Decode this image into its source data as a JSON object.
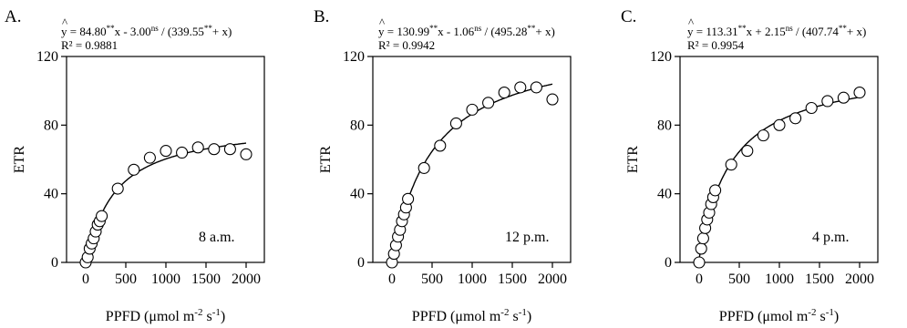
{
  "chart_data": [
    {
      "type": "scatter",
      "panel_label": "A.",
      "equation": {
        "hat": "^",
        "lhs": "y",
        "a": "84.80",
        "a_sig": "**",
        "b_sign": "-",
        "b": "3.00",
        "b_sig": "ns",
        "c": "339.55",
        "c_sig": "**"
      },
      "r2": "R² = 0.9881",
      "time_label": "8 a.m.",
      "xlabel": {
        "base": "PPFD (μmol m",
        "sup1": "-2",
        "mid": " s",
        "sup2": "-1",
        "end": ")"
      },
      "ylabel": "ETR",
      "xlim": [
        0,
        2000
      ],
      "ylim": [
        0,
        120
      ],
      "xticks": [
        0,
        500,
        1000,
        1500,
        2000
      ],
      "yticks": [
        0,
        40,
        80,
        120
      ],
      "fit": {
        "a": 84.8,
        "b": -3.0,
        "c": 339.55
      },
      "points": [
        {
          "x": 0,
          "y": 0
        },
        {
          "x": 25,
          "y": 3
        },
        {
          "x": 50,
          "y": 8
        },
        {
          "x": 75,
          "y": 11
        },
        {
          "x": 100,
          "y": 14
        },
        {
          "x": 125,
          "y": 18
        },
        {
          "x": 150,
          "y": 22
        },
        {
          "x": 175,
          "y": 24
        },
        {
          "x": 200,
          "y": 27
        },
        {
          "x": 400,
          "y": 43
        },
        {
          "x": 600,
          "y": 54
        },
        {
          "x": 800,
          "y": 61
        },
        {
          "x": 1000,
          "y": 65
        },
        {
          "x": 1200,
          "y": 64
        },
        {
          "x": 1400,
          "y": 67
        },
        {
          "x": 1600,
          "y": 66
        },
        {
          "x": 1800,
          "y": 66
        },
        {
          "x": 2000,
          "y": 63
        }
      ]
    },
    {
      "type": "scatter",
      "panel_label": "B.",
      "equation": {
        "hat": "^",
        "lhs": "y",
        "a": "130.99",
        "a_sig": "**",
        "b_sign": "-",
        "b": "1.06",
        "b_sig": "ns",
        "c": "495.28",
        "c_sig": "**"
      },
      "r2": "R² = 0.9942",
      "time_label": "12 p.m.",
      "xlabel": {
        "base": "PPFD (μmol m",
        "sup1": "-2",
        "mid": " s",
        "sup2": "-1",
        "end": ")"
      },
      "ylabel": "ETR",
      "xlim": [
        0,
        2000
      ],
      "ylim": [
        0,
        120
      ],
      "xticks": [
        0,
        500,
        1000,
        1500,
        2000
      ],
      "yticks": [
        0,
        40,
        80,
        120
      ],
      "fit": {
        "a": 130.99,
        "b": -1.06,
        "c": 495.28
      },
      "points": [
        {
          "x": 0,
          "y": 0
        },
        {
          "x": 25,
          "y": 5
        },
        {
          "x": 50,
          "y": 10
        },
        {
          "x": 75,
          "y": 15
        },
        {
          "x": 100,
          "y": 19
        },
        {
          "x": 125,
          "y": 24
        },
        {
          "x": 150,
          "y": 28
        },
        {
          "x": 175,
          "y": 32
        },
        {
          "x": 200,
          "y": 37
        },
        {
          "x": 400,
          "y": 55
        },
        {
          "x": 600,
          "y": 68
        },
        {
          "x": 800,
          "y": 81
        },
        {
          "x": 1000,
          "y": 89
        },
        {
          "x": 1200,
          "y": 93
        },
        {
          "x": 1400,
          "y": 99
        },
        {
          "x": 1600,
          "y": 102
        },
        {
          "x": 1800,
          "y": 102
        },
        {
          "x": 2000,
          "y": 95
        }
      ]
    },
    {
      "type": "scatter",
      "panel_label": "C.",
      "equation": {
        "hat": "^",
        "lhs": "y",
        "a": "113.31",
        "a_sig": "**",
        "b_sign": "+",
        "b": "2.15",
        "b_sig": "ns",
        "c": "407.74",
        "c_sig": "**"
      },
      "r2": "R² = 0.9954",
      "time_label": "4 p.m.",
      "xlabel": {
        "base": "PPFD (μmol m",
        "sup1": "-2",
        "mid": " s",
        "sup2": "-1",
        "end": ")"
      },
      "ylabel": "ETR",
      "xlim": [
        0,
        2000
      ],
      "ylim": [
        0,
        120
      ],
      "xticks": [
        0,
        500,
        1000,
        1500,
        2000
      ],
      "yticks": [
        0,
        40,
        80,
        120
      ],
      "fit": {
        "a": 113.31,
        "b": 2.15,
        "c": 407.74
      },
      "points": [
        {
          "x": 0,
          "y": 0
        },
        {
          "x": 25,
          "y": 8
        },
        {
          "x": 50,
          "y": 14
        },
        {
          "x": 75,
          "y": 20
        },
        {
          "x": 100,
          "y": 25
        },
        {
          "x": 125,
          "y": 29
        },
        {
          "x": 150,
          "y": 34
        },
        {
          "x": 175,
          "y": 38
        },
        {
          "x": 200,
          "y": 42
        },
        {
          "x": 400,
          "y": 57
        },
        {
          "x": 600,
          "y": 65
        },
        {
          "x": 800,
          "y": 74
        },
        {
          "x": 1000,
          "y": 80
        },
        {
          "x": 1200,
          "y": 84
        },
        {
          "x": 1400,
          "y": 90
        },
        {
          "x": 1600,
          "y": 94
        },
        {
          "x": 1800,
          "y": 96
        },
        {
          "x": 2000,
          "y": 99
        }
      ]
    }
  ]
}
